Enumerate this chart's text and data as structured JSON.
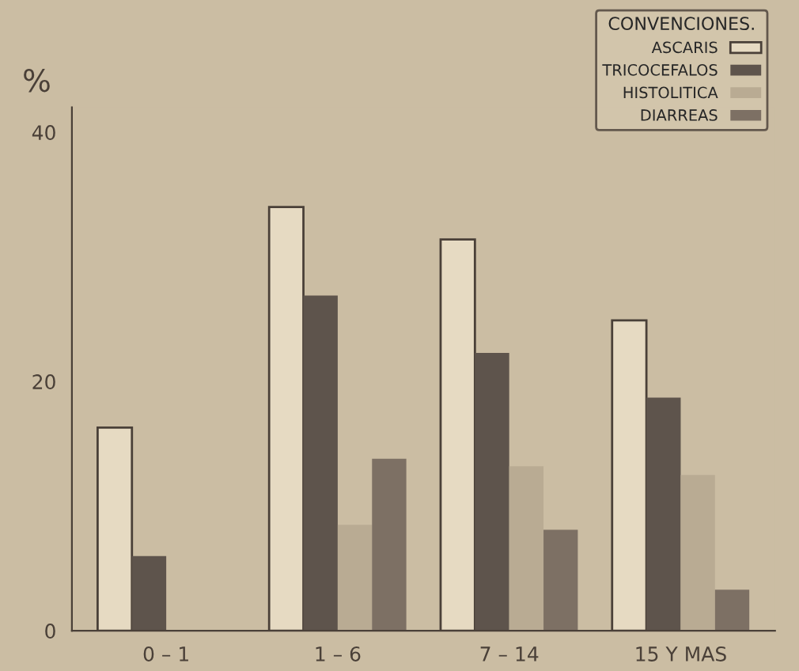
{
  "chart_data": {
    "type": "bar",
    "ylabel": "%",
    "legend_title": "CONVENCIONES.",
    "categories": [
      "0 – 1",
      "1 – 6",
      "7 – 14",
      "15 Y MAS"
    ],
    "series": [
      {
        "name": "ASCARIS",
        "color": "#e6dac2",
        "values": [
          16.3,
          34.0,
          31.4,
          24.9
        ]
      },
      {
        "name": "TRICOCEFALOS",
        "color": "#5e544c",
        "values": [
          6.0,
          26.9,
          22.3,
          18.7
        ]
      },
      {
        "name": "HISTOLITICA",
        "color": "#b9ab93",
        "values": [
          null,
          8.5,
          13.2,
          12.5
        ]
      },
      {
        "name": "DIARREAS",
        "color": "#7d7064",
        "values": [
          null,
          13.8,
          8.1,
          3.3
        ]
      }
    ],
    "ylim": [
      0,
      42
    ],
    "yticks": [
      0,
      20,
      40
    ],
    "legend": "top right"
  }
}
